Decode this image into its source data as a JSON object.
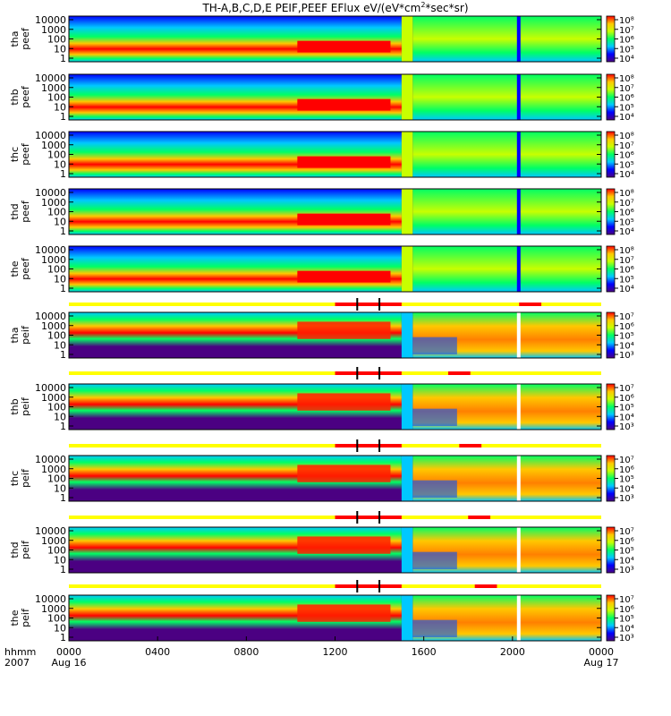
{
  "chart_data": {
    "type": "heatmap",
    "title": "TH-A,B,C,D,E PEIF,PEEF EFlux eV/(eV*cm^2*sec*sr)",
    "title_parts": {
      "main": "TH-A,B,C,D,E PEIF,PEEF EFlux eV/(eV*cm",
      "sup": "2",
      "tail": "*sec*sr)"
    },
    "x_axis": {
      "ticks": [
        "0000",
        "0400",
        "0800",
        "1200",
        "1600",
        "2000",
        "0000"
      ],
      "tick_hours": [
        0,
        4,
        8,
        12,
        16,
        20,
        24
      ],
      "date_labels": [
        "Aug 16",
        "Aug 17"
      ],
      "row_label_1": "hhmm",
      "row_label_2": "2007",
      "range_hours": [
        0,
        24
      ]
    },
    "y_axis": {
      "scale": "log",
      "ticks": [
        "10000",
        "1000",
        "100",
        "10",
        "1"
      ],
      "units": "eV"
    },
    "panels": [
      {
        "probe": "tha",
        "product": "peef",
        "cbar_ticks": [
          "10⁸",
          "10⁷",
          "10⁶",
          "10⁵",
          "10⁴"
        ],
        "has_bar": false
      },
      {
        "probe": "thb",
        "product": "peef",
        "cbar_ticks": [
          "10⁸",
          "10⁷",
          "10⁶",
          "10⁵",
          "10⁴"
        ],
        "has_bar": false
      },
      {
        "probe": "thc",
        "product": "peef",
        "cbar_ticks": [
          "10⁸",
          "10⁷",
          "10⁶",
          "10⁵",
          "10⁴"
        ],
        "has_bar": false
      },
      {
        "probe": "thd",
        "product": "peef",
        "cbar_ticks": [
          "10⁸",
          "10⁷",
          "10⁶",
          "10⁵",
          "10⁴"
        ],
        "has_bar": false
      },
      {
        "probe": "the",
        "product": "peef",
        "cbar_ticks": [
          "10⁸",
          "10⁷",
          "10⁶",
          "10⁵",
          "10⁴"
        ],
        "has_bar": false
      },
      {
        "probe": "tha",
        "product": "peif",
        "cbar_ticks": [
          "10⁷",
          "10⁶",
          "10⁵",
          "10⁴",
          "10³"
        ],
        "has_bar": true
      },
      {
        "probe": "thb",
        "product": "peif",
        "cbar_ticks": [
          "10⁷",
          "10⁶",
          "10⁵",
          "10⁴",
          "10³"
        ],
        "has_bar": true
      },
      {
        "probe": "thc",
        "product": "peif",
        "cbar_ticks": [
          "10⁷",
          "10⁶",
          "10⁵",
          "10⁴",
          "10³"
        ],
        "has_bar": true
      },
      {
        "probe": "thd",
        "product": "peif",
        "cbar_ticks": [
          "10⁷",
          "10⁶",
          "10⁵",
          "10⁴",
          "10³"
        ],
        "has_bar": true
      },
      {
        "probe": "the",
        "product": "peif",
        "cbar_ticks": [
          "10⁷",
          "10⁶",
          "10⁵",
          "10⁴",
          "10³"
        ],
        "has_bar": true
      }
    ],
    "colors": {
      "mode_bar_default": "#ffff00",
      "mode_bar_burst": "#ff0000",
      "mode_bar_marker": "#00aaff",
      "fill_colors": [
        "#4b0082",
        "#0000ff",
        "#00c8ff",
        "#00ff64",
        "#c8ff00",
        "#ffc800",
        "#ff0000"
      ]
    }
  }
}
